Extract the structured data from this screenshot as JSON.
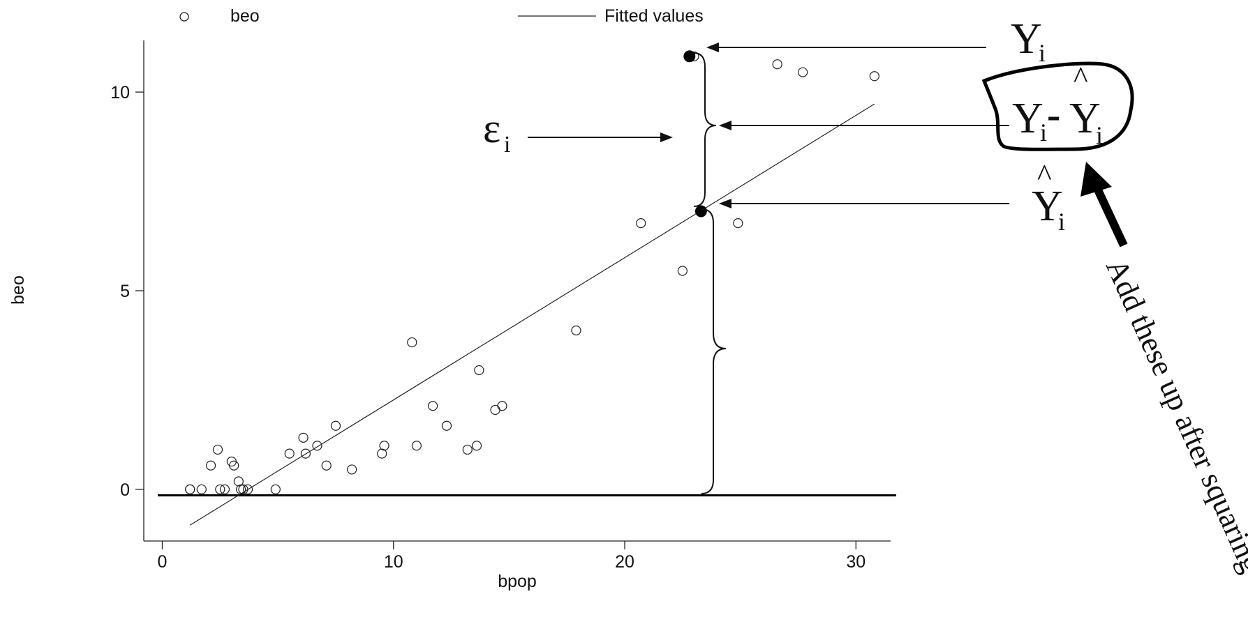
{
  "chart_data": {
    "type": "scatter",
    "xlabel": "bpop",
    "ylabel": "beo",
    "xlim": [
      -0.8,
      31.5
    ],
    "ylim": [
      -1.3,
      11.3
    ],
    "x_ticks": [
      0,
      10,
      20,
      30
    ],
    "y_ticks": [
      0,
      5,
      10
    ],
    "legend": {
      "placement": "top",
      "entries": [
        {
          "label": "beo",
          "marker": "hollow-circle"
        },
        {
          "label": "Fitted values",
          "marker": "line"
        }
      ]
    },
    "series": [
      {
        "name": "beo",
        "kind": "scatter",
        "points": [
          [
            1.2,
            0
          ],
          [
            1.2,
            0
          ],
          [
            1.7,
            0
          ],
          [
            2.1,
            0.6
          ],
          [
            2.4,
            1.0
          ],
          [
            2.5,
            0
          ],
          [
            2.7,
            0
          ],
          [
            3.0,
            0.7
          ],
          [
            3.1,
            0.6
          ],
          [
            3.3,
            0.2
          ],
          [
            3.4,
            0
          ],
          [
            3.5,
            0
          ],
          [
            3.7,
            0
          ],
          [
            4.9,
            0
          ],
          [
            5.5,
            0.9
          ],
          [
            6.1,
            1.3
          ],
          [
            6.2,
            0.9
          ],
          [
            6.7,
            1.1
          ],
          [
            7.1,
            0.6
          ],
          [
            7.5,
            1.6
          ],
          [
            8.2,
            0.5
          ],
          [
            9.5,
            0.9
          ],
          [
            9.6,
            1.1
          ],
          [
            10.8,
            3.7
          ],
          [
            11.0,
            1.1
          ],
          [
            11.7,
            2.1
          ],
          [
            12.3,
            1.6
          ],
          [
            13.2,
            1.0
          ],
          [
            13.6,
            1.1
          ],
          [
            13.7,
            3.0
          ],
          [
            14.4,
            2.0
          ],
          [
            14.7,
            2.1
          ],
          [
            17.9,
            4.0
          ],
          [
            20.7,
            6.7
          ],
          [
            22.5,
            5.5
          ],
          [
            23.0,
            10.9
          ],
          [
            24.9,
            6.7
          ],
          [
            26.6,
            10.7
          ],
          [
            27.7,
            10.5
          ],
          [
            30.8,
            10.4
          ]
        ]
      },
      {
        "name": "Fitted values",
        "kind": "line",
        "points": [
          [
            1.2,
            -0.9
          ],
          [
            30.8,
            9.7
          ]
        ]
      }
    ],
    "highlight_points": [
      [
        22.8,
        10.9
      ],
      [
        23.3,
        7.0
      ]
    ],
    "baseline_y": -0.15
  },
  "annotations": {
    "y_label": "Y",
    "y_sub": "i",
    "residual_y": "Y",
    "residual_sub": "i",
    "residual_minus": "-",
    "residual_yhat": "Y",
    "residual_yhat_sub": "i",
    "yhat": "Y",
    "yhat_sub": "i",
    "hat": "^",
    "epsilon": "ε",
    "epsilon_sub": "i",
    "note": "Add these up after squaring"
  }
}
